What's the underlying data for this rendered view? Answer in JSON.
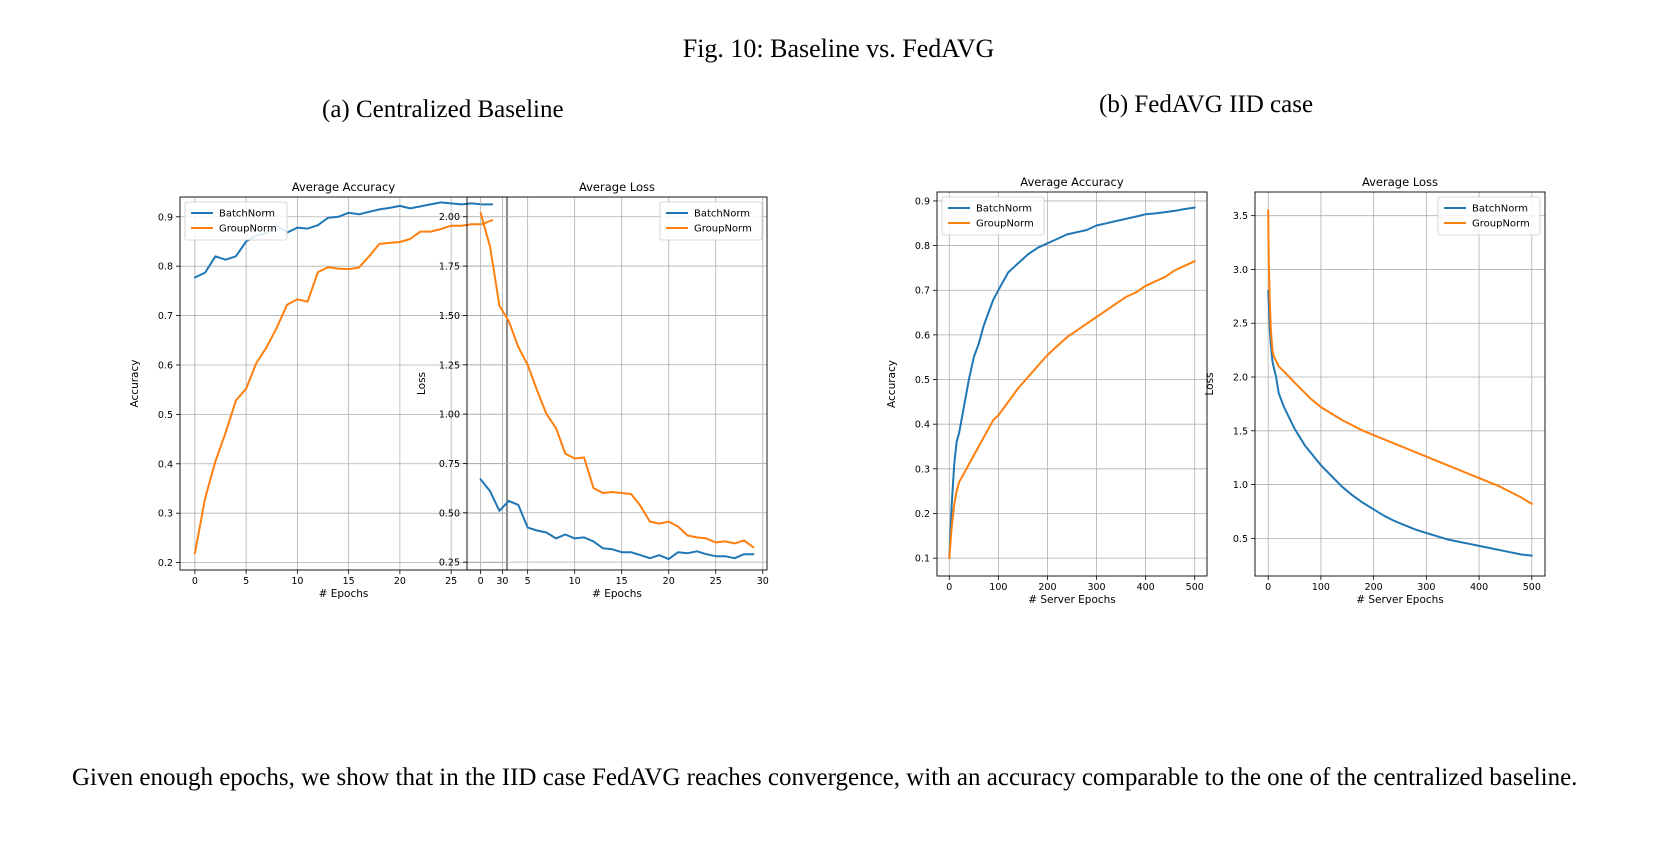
{
  "figure": {
    "title": "Fig. 10: Baseline vs. FedAVG",
    "subfigures": [
      {
        "label": "(a) Centralized Baseline"
      },
      {
        "label": "(b) FedAVG IID case"
      }
    ]
  },
  "body_text": "Given enough epochs, we show that in the IID case FedAVG reaches convergence, with an accuracy comparable to the one of the centralized baseline.",
  "colors": {
    "batchnorm": "#1f77b4",
    "groupnorm": "#ff7f0e",
    "grid": "#b0b0b0"
  },
  "chart_data": [
    {
      "type": "line",
      "title": "Average Accuracy",
      "xlabel": "# Epochs",
      "ylabel": "Accuracy",
      "xlim": [
        -1.45,
        30.45
      ],
      "ylim": [
        0.185,
        0.94
      ],
      "xticks": [
        0,
        5,
        10,
        15,
        20,
        25,
        30
      ],
      "yticks": [
        0.2,
        0.3,
        0.4,
        0.5,
        0.6,
        0.7,
        0.8,
        0.9
      ],
      "tick_decimals": 1,
      "grid": true,
      "legend": "upper-left",
      "x": [
        0,
        1,
        2,
        3,
        4,
        5,
        6,
        7,
        8,
        9,
        10,
        11,
        12,
        13,
        14,
        15,
        16,
        17,
        18,
        19,
        20,
        21,
        22,
        23,
        24,
        25,
        26,
        27,
        28,
        29
      ],
      "series": [
        {
          "name": "BatchNorm",
          "color": "#1f77b4",
          "values": [
            0.777,
            0.787,
            0.82,
            0.813,
            0.82,
            0.85,
            0.862,
            0.867,
            0.882,
            0.868,
            0.878,
            0.876,
            0.883,
            0.898,
            0.9,
            0.908,
            0.905,
            0.91,
            0.915,
            0.918,
            0.922,
            0.917,
            0.921,
            0.925,
            0.929,
            0.927,
            0.925,
            0.927,
            0.925,
            0.925
          ]
        },
        {
          "name": "GroupNorm",
          "color": "#ff7f0e",
          "values": [
            0.219,
            0.33,
            0.405,
            0.463,
            0.528,
            0.552,
            0.604,
            0.636,
            0.676,
            0.722,
            0.733,
            0.728,
            0.788,
            0.798,
            0.795,
            0.794,
            0.797,
            0.82,
            0.845,
            0.847,
            0.849,
            0.855,
            0.87,
            0.87,
            0.875,
            0.882,
            0.882,
            0.885,
            0.885,
            0.893
          ]
        }
      ]
    },
    {
      "type": "line",
      "title": "Average Loss",
      "xlabel": "# Epochs",
      "ylabel": "Loss",
      "xlim": [
        -1.45,
        30.45
      ],
      "ylim": [
        0.21,
        2.1
      ],
      "xticks": [
        0,
        5,
        10,
        15,
        20,
        25,
        30
      ],
      "yticks": [
        0.25,
        0.5,
        0.75,
        1.0,
        1.25,
        1.5,
        1.75,
        2.0
      ],
      "tick_decimals": 2,
      "grid": true,
      "legend": "upper-right",
      "x": [
        0,
        1,
        2,
        3,
        4,
        5,
        6,
        7,
        8,
        9,
        10,
        11,
        12,
        13,
        14,
        15,
        16,
        17,
        18,
        19,
        20,
        21,
        22,
        23,
        24,
        25,
        26,
        27,
        28,
        29
      ],
      "series": [
        {
          "name": "BatchNorm",
          "color": "#1f77b4",
          "values": [
            0.67,
            0.61,
            0.51,
            0.56,
            0.54,
            0.425,
            0.41,
            0.4,
            0.37,
            0.39,
            0.37,
            0.375,
            0.355,
            0.32,
            0.315,
            0.3,
            0.3,
            0.285,
            0.27,
            0.285,
            0.265,
            0.3,
            0.295,
            0.305,
            0.29,
            0.28,
            0.28,
            0.27,
            0.29,
            0.29
          ]
        },
        {
          "name": "GroupNorm",
          "color": "#ff7f0e",
          "values": [
            2.02,
            1.85,
            1.55,
            1.47,
            1.34,
            1.25,
            1.12,
            1.0,
            0.93,
            0.8,
            0.775,
            0.78,
            0.625,
            0.6,
            0.605,
            0.6,
            0.595,
            0.535,
            0.455,
            0.445,
            0.455,
            0.43,
            0.385,
            0.375,
            0.37,
            0.35,
            0.355,
            0.345,
            0.36,
            0.325
          ]
        }
      ]
    },
    {
      "type": "line",
      "title": "Average Accuracy",
      "xlabel": "# Server Epochs",
      "ylabel": "Accuracy",
      "xlim": [
        -25,
        525
      ],
      "ylim": [
        0.06,
        0.92
      ],
      "xticks": [
        0,
        100,
        200,
        300,
        400,
        500
      ],
      "yticks": [
        0.1,
        0.2,
        0.3,
        0.4,
        0.5,
        0.6,
        0.7,
        0.8,
        0.9
      ],
      "tick_decimals": 1,
      "grid": true,
      "legend": "upper-left",
      "x": [
        0,
        5,
        10,
        15,
        20,
        30,
        40,
        50,
        60,
        70,
        80,
        90,
        100,
        120,
        140,
        160,
        180,
        200,
        220,
        240,
        260,
        280,
        300,
        320,
        340,
        360,
        380,
        400,
        420,
        440,
        460,
        480,
        500
      ],
      "series": [
        {
          "name": "BatchNorm",
          "color": "#1f77b4",
          "values": [
            0.1,
            0.22,
            0.31,
            0.36,
            0.38,
            0.44,
            0.5,
            0.55,
            0.58,
            0.62,
            0.65,
            0.68,
            0.7,
            0.74,
            0.76,
            0.78,
            0.795,
            0.805,
            0.815,
            0.825,
            0.83,
            0.835,
            0.845,
            0.85,
            0.855,
            0.86,
            0.865,
            0.87,
            0.872,
            0.875,
            0.878,
            0.882,
            0.885
          ]
        },
        {
          "name": "GroupNorm",
          "color": "#ff7f0e",
          "values": [
            0.1,
            0.17,
            0.22,
            0.25,
            0.27,
            0.29,
            0.31,
            0.33,
            0.35,
            0.37,
            0.39,
            0.41,
            0.42,
            0.45,
            0.48,
            0.505,
            0.53,
            0.555,
            0.575,
            0.595,
            0.61,
            0.625,
            0.64,
            0.655,
            0.67,
            0.685,
            0.695,
            0.71,
            0.72,
            0.73,
            0.745,
            0.755,
            0.765
          ]
        }
      ]
    },
    {
      "type": "line",
      "title": "Average Loss",
      "xlabel": "# Server Epochs",
      "ylabel": "Loss",
      "xlim": [
        -25,
        525
      ],
      "ylim": [
        0.15,
        3.72
      ],
      "xticks": [
        0,
        100,
        200,
        300,
        400,
        500
      ],
      "yticks": [
        0.5,
        1.0,
        1.5,
        2.0,
        2.5,
        3.0,
        3.5
      ],
      "tick_decimals": 1,
      "grid": true,
      "legend": "upper-right",
      "x": [
        0,
        1,
        3,
        5,
        8,
        10,
        15,
        20,
        30,
        40,
        50,
        60,
        70,
        80,
        90,
        100,
        120,
        140,
        160,
        180,
        200,
        220,
        240,
        260,
        280,
        300,
        320,
        340,
        360,
        380,
        400,
        420,
        440,
        460,
        480,
        500
      ],
      "series": [
        {
          "name": "BatchNorm",
          "color": "#1f77b4",
          "values": [
            2.8,
            2.7,
            2.45,
            2.3,
            2.15,
            2.1,
            2.0,
            1.85,
            1.72,
            1.62,
            1.52,
            1.44,
            1.36,
            1.3,
            1.24,
            1.18,
            1.08,
            0.98,
            0.9,
            0.83,
            0.77,
            0.71,
            0.66,
            0.62,
            0.58,
            0.55,
            0.52,
            0.49,
            0.47,
            0.45,
            0.43,
            0.41,
            0.39,
            0.37,
            0.35,
            0.34
          ]
        },
        {
          "name": "GroupNorm",
          "color": "#ff7f0e",
          "values": [
            3.55,
            3.1,
            2.7,
            2.45,
            2.25,
            2.2,
            2.15,
            2.1,
            2.05,
            2.0,
            1.95,
            1.9,
            1.85,
            1.8,
            1.76,
            1.72,
            1.66,
            1.6,
            1.55,
            1.5,
            1.46,
            1.42,
            1.38,
            1.34,
            1.3,
            1.26,
            1.22,
            1.18,
            1.14,
            1.1,
            1.06,
            1.02,
            0.98,
            0.93,
            0.88,
            0.82
          ]
        }
      ]
    }
  ]
}
